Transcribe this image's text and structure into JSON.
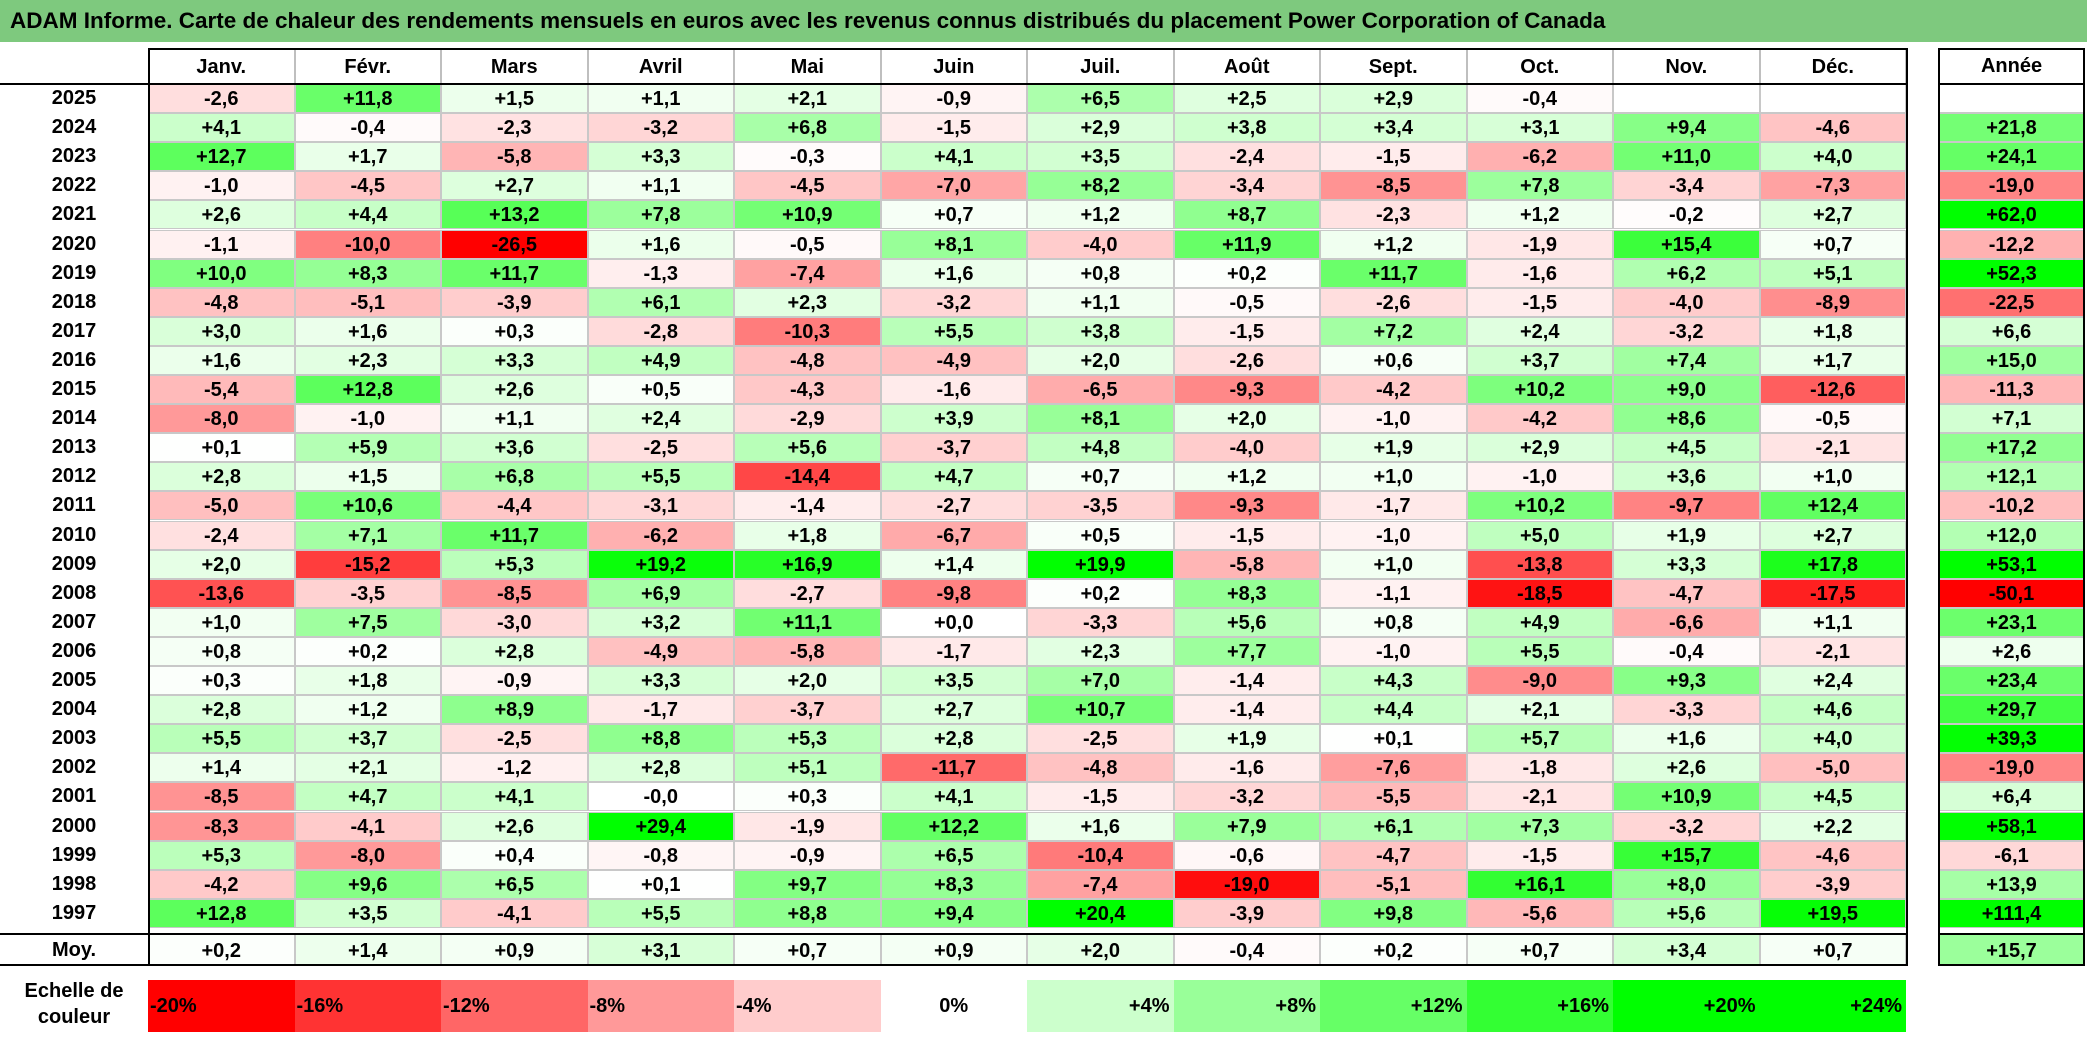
{
  "title": "ADAM Informe. Carte de chaleur des rendements mensuels en euros avec les revenus connus distribués du placement Power Corporation of Canada",
  "chart_data": {
    "type": "heatmap",
    "title": "ADAM Informe. Carte de chaleur des rendements mensuels en euros avec les revenus connus distribués du placement Power Corporation of Canada",
    "columns": [
      "Janv.",
      "Févr.",
      "Mars",
      "Avril",
      "Mai",
      "Juin",
      "Juil.",
      "Août",
      "Sept.",
      "Oct.",
      "Nov.",
      "Déc."
    ],
    "year_column_label": "Année",
    "rows": [
      {
        "year": "2025",
        "values": [
          "-2,6",
          "+11,8",
          "+1,5",
          "+1,1",
          "+2,1",
          "-0,9",
          "+6,5",
          "+2,5",
          "+2,9",
          "-0,4",
          "",
          ""
        ],
        "annual": ""
      },
      {
        "year": "2024",
        "values": [
          "+4,1",
          "-0,4",
          "-2,3",
          "-3,2",
          "+6,8",
          "-1,5",
          "+2,9",
          "+3,8",
          "+3,4",
          "+3,1",
          "+9,4",
          "-4,6"
        ],
        "annual": "+21,8"
      },
      {
        "year": "2023",
        "values": [
          "+12,7",
          "+1,7",
          "-5,8",
          "+3,3",
          "-0,3",
          "+4,1",
          "+3,5",
          "-2,4",
          "-1,5",
          "-6,2",
          "+11,0",
          "+4,0"
        ],
        "annual": "+24,1"
      },
      {
        "year": "2022",
        "values": [
          "-1,0",
          "-4,5",
          "+2,7",
          "+1,1",
          "-4,5",
          "-7,0",
          "+8,2",
          "-3,4",
          "-8,5",
          "+7,8",
          "-3,4",
          "-7,3"
        ],
        "annual": "-19,0"
      },
      {
        "year": "2021",
        "values": [
          "+2,6",
          "+4,4",
          "+13,2",
          "+7,8",
          "+10,9",
          "+0,7",
          "+1,2",
          "+8,7",
          "-2,3",
          "+1,2",
          "-0,2",
          "+2,7"
        ],
        "annual": "+62,0"
      },
      {
        "year": "2020",
        "values": [
          "-1,1",
          "-10,0",
          "-26,5",
          "+1,6",
          "-0,5",
          "+8,1",
          "-4,0",
          "+11,9",
          "+1,2",
          "-1,9",
          "+15,4",
          "+0,7"
        ],
        "annual": "-12,2"
      },
      {
        "year": "2019",
        "values": [
          "+10,0",
          "+8,3",
          "+11,7",
          "-1,3",
          "-7,4",
          "+1,6",
          "+0,8",
          "+0,2",
          "+11,7",
          "-1,6",
          "+6,2",
          "+5,1"
        ],
        "annual": "+52,3"
      },
      {
        "year": "2018",
        "values": [
          "-4,8",
          "-5,1",
          "-3,9",
          "+6,1",
          "+2,3",
          "-3,2",
          "+1,1",
          "-0,5",
          "-2,6",
          "-1,5",
          "-4,0",
          "-8,9"
        ],
        "annual": "-22,5"
      },
      {
        "year": "2017",
        "values": [
          "+3,0",
          "+1,6",
          "+0,3",
          "-2,8",
          "-10,3",
          "+5,5",
          "+3,8",
          "-1,5",
          "+7,2",
          "+2,4",
          "-3,2",
          "+1,8"
        ],
        "annual": "+6,6"
      },
      {
        "year": "2016",
        "values": [
          "+1,6",
          "+2,3",
          "+3,3",
          "+4,9",
          "-4,8",
          "-4,9",
          "+2,0",
          "-2,6",
          "+0,6",
          "+3,7",
          "+7,4",
          "+1,7"
        ],
        "annual": "+15,0"
      },
      {
        "year": "2015",
        "values": [
          "-5,4",
          "+12,8",
          "+2,6",
          "+0,5",
          "-4,3",
          "-1,6",
          "-6,5",
          "-9,3",
          "-4,2",
          "+10,2",
          "+9,0",
          "-12,6"
        ],
        "annual": "-11,3"
      },
      {
        "year": "2014",
        "values": [
          "-8,0",
          "-1,0",
          "+1,1",
          "+2,4",
          "-2,9",
          "+3,9",
          "+8,1",
          "+2,0",
          "-1,0",
          "-4,2",
          "+8,6",
          "-0,5"
        ],
        "annual": "+7,1"
      },
      {
        "year": "2013",
        "values": [
          "+0,1",
          "+5,9",
          "+3,6",
          "-2,5",
          "+5,6",
          "-3,7",
          "+4,8",
          "-4,0",
          "+1,9",
          "+2,9",
          "+4,5",
          "-2,1"
        ],
        "annual": "+17,2"
      },
      {
        "year": "2012",
        "values": [
          "+2,8",
          "+1,5",
          "+6,8",
          "+5,5",
          "-14,4",
          "+4,7",
          "+0,7",
          "+1,2",
          "+1,0",
          "-1,0",
          "+3,6",
          "+1,0"
        ],
        "annual": "+12,1"
      },
      {
        "year": "2011",
        "values": [
          "-5,0",
          "+10,6",
          "-4,4",
          "-3,1",
          "-1,4",
          "-2,7",
          "-3,5",
          "-9,3",
          "-1,7",
          "+10,2",
          "-9,7",
          "+12,4"
        ],
        "annual": "-10,2"
      },
      {
        "year": "2010",
        "values": [
          "-2,4",
          "+7,1",
          "+11,7",
          "-6,2",
          "+1,8",
          "-6,7",
          "+0,5",
          "-1,5",
          "-1,0",
          "+5,0",
          "+1,9",
          "+2,7"
        ],
        "annual": "+12,0"
      },
      {
        "year": "2009",
        "values": [
          "+2,0",
          "-15,2",
          "+5,3",
          "+19,2",
          "+16,9",
          "+1,4",
          "+19,9",
          "-5,8",
          "+1,0",
          "-13,8",
          "+3,3",
          "+17,8"
        ],
        "annual": "+53,1"
      },
      {
        "year": "2008",
        "values": [
          "-13,6",
          "-3,5",
          "-8,5",
          "+6,9",
          "-2,7",
          "-9,8",
          "+0,2",
          "+8,3",
          "-1,1",
          "-18,5",
          "-4,7",
          "-17,5"
        ],
        "annual": "-50,1"
      },
      {
        "year": "2007",
        "values": [
          "+1,0",
          "+7,5",
          "-3,0",
          "+3,2",
          "+11,1",
          "+0,0",
          "-3,3",
          "+5,6",
          "+0,8",
          "+4,9",
          "-6,6",
          "+1,1"
        ],
        "annual": "+23,1"
      },
      {
        "year": "2006",
        "values": [
          "+0,8",
          "+0,2",
          "+2,8",
          "-4,9",
          "-5,8",
          "-1,7",
          "+2,3",
          "+7,7",
          "-1,0",
          "+5,5",
          "-0,4",
          "-2,1"
        ],
        "annual": "+2,6"
      },
      {
        "year": "2005",
        "values": [
          "+0,3",
          "+1,8",
          "-0,9",
          "+3,3",
          "+2,0",
          "+3,5",
          "+7,0",
          "-1,4",
          "+4,3",
          "-9,0",
          "+9,3",
          "+2,4"
        ],
        "annual": "+23,4"
      },
      {
        "year": "2004",
        "values": [
          "+2,8",
          "+1,2",
          "+8,9",
          "-1,7",
          "-3,7",
          "+2,7",
          "+10,7",
          "-1,4",
          "+4,4",
          "+2,1",
          "-3,3",
          "+4,6"
        ],
        "annual": "+29,7"
      },
      {
        "year": "2003",
        "values": [
          "+5,5",
          "+3,7",
          "-2,5",
          "+8,8",
          "+5,3",
          "+2,8",
          "-2,5",
          "+1,9",
          "+0,1",
          "+5,7",
          "+1,6",
          "+4,0"
        ],
        "annual": "+39,3"
      },
      {
        "year": "2002",
        "values": [
          "+1,4",
          "+2,1",
          "-1,2",
          "+2,8",
          "+5,1",
          "-11,7",
          "-4,8",
          "-1,6",
          "-7,6",
          "-1,8",
          "+2,6",
          "-5,0"
        ],
        "annual": "-19,0"
      },
      {
        "year": "2001",
        "values": [
          "-8,5",
          "+4,7",
          "+4,1",
          "-0,0",
          "+0,3",
          "+4,1",
          "-1,5",
          "-3,2",
          "-5,5",
          "-2,1",
          "+10,9",
          "+4,5"
        ],
        "annual": "+6,4"
      },
      {
        "year": "2000",
        "values": [
          "-8,3",
          "-4,1",
          "+2,6",
          "+29,4",
          "-1,9",
          "+12,2",
          "+1,6",
          "+7,9",
          "+6,1",
          "+7,3",
          "-3,2",
          "+2,2"
        ],
        "annual": "+58,1"
      },
      {
        "year": "1999",
        "values": [
          "+5,3",
          "-8,0",
          "+0,4",
          "-0,8",
          "-0,9",
          "+6,5",
          "-10,4",
          "-0,6",
          "-4,7",
          "-1,5",
          "+15,7",
          "-4,6"
        ],
        "annual": "-6,1"
      },
      {
        "year": "1998",
        "values": [
          "-4,2",
          "+9,6",
          "+6,5",
          "+0,1",
          "+9,7",
          "+8,3",
          "-7,4",
          "-19,0",
          "-5,1",
          "+16,1",
          "+8,0",
          "-3,9"
        ],
        "annual": "+13,9"
      },
      {
        "year": "1997",
        "values": [
          "+12,8",
          "+3,5",
          "-4,1",
          "+5,5",
          "+8,8",
          "+9,4",
          "+20,4",
          "-3,9",
          "+9,8",
          "-5,6",
          "+5,6",
          "+19,5"
        ],
        "annual": "+111,4"
      }
    ],
    "average": {
      "label": "Moy.",
      "values": [
        "+0,2",
        "+1,4",
        "+0,9",
        "+3,1",
        "+0,7",
        "+0,9",
        "+2,0",
        "-0,4",
        "+0,2",
        "+0,7",
        "+3,4",
        "+0,7"
      ],
      "annual": "+15,7"
    },
    "color_scale": {
      "label": "Echelle de couleur",
      "entries": [
        {
          "label": "-20%",
          "value": -20
        },
        {
          "label": "-16%",
          "value": -16
        },
        {
          "label": "-12%",
          "value": -12
        },
        {
          "label": "-8%",
          "value": -8
        },
        {
          "label": "-4%",
          "value": -4
        },
        {
          "label": "0%",
          "value": 0
        },
        {
          "label": "+4%",
          "value": 4
        },
        {
          "label": "+8%",
          "value": 8
        },
        {
          "label": "+12%",
          "value": 12
        },
        {
          "label": "+16%",
          "value": 16
        },
        {
          "label": "+20%",
          "value": 20
        },
        {
          "label": "+24%",
          "value": 24
        }
      ],
      "negative_color": "#ff0000",
      "positive_color": "#00ff00",
      "zero_color": "#ffffff"
    }
  }
}
